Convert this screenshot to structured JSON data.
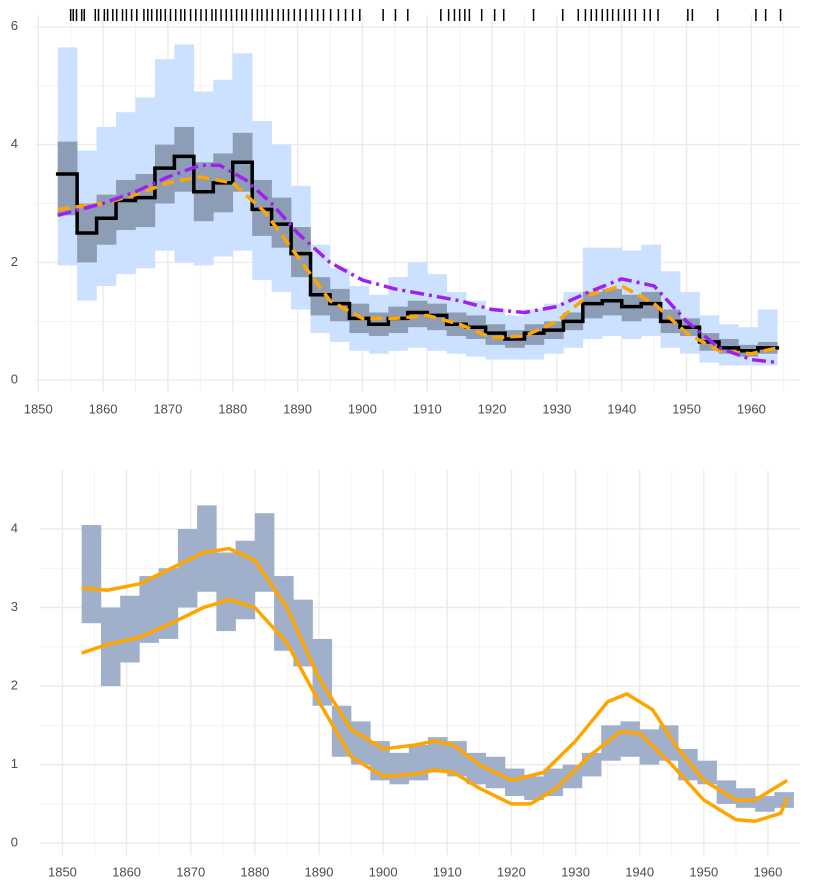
{
  "chart_data": [
    {
      "type": "line",
      "xlim": [
        1849.5,
        1967.5
      ],
      "ylim": [
        -0.2,
        6.2
      ],
      "xticks": [
        1850,
        1860,
        1870,
        1880,
        1890,
        1900,
        1910,
        1920,
        1930,
        1940,
        1950,
        1960
      ],
      "yticks": [
        0,
        2,
        4,
        6
      ],
      "grid": true,
      "bins": [
        1853,
        1856,
        1859,
        1862,
        1865,
        1868,
        1871,
        1874,
        1877,
        1880,
        1883,
        1886,
        1889,
        1892,
        1895,
        1898,
        1901,
        1904,
        1907,
        1910,
        1913,
        1916,
        1919,
        1922,
        1925,
        1928,
        1931,
        1934,
        1937,
        1940,
        1943,
        1946,
        1949,
        1952,
        1955,
        1958,
        1961,
        1964
      ],
      "bands": [
        {
          "color": "#cce0ff",
          "lower": [
            1.95,
            1.35,
            1.6,
            1.8,
            1.9,
            2.2,
            2.0,
            1.95,
            2.1,
            2.2,
            1.7,
            1.5,
            1.2,
            0.8,
            0.65,
            0.5,
            0.45,
            0.5,
            0.55,
            0.5,
            0.45,
            0.4,
            0.35,
            0.35,
            0.35,
            0.45,
            0.55,
            0.7,
            0.75,
            0.7,
            0.75,
            0.55,
            0.45,
            0.3,
            0.25,
            0.25,
            0.25
          ],
          "upper": [
            5.65,
            3.9,
            4.3,
            4.55,
            4.8,
            5.45,
            5.7,
            4.9,
            5.1,
            5.55,
            4.4,
            4.0,
            3.3,
            2.3,
            1.9,
            1.6,
            1.45,
            1.75,
            2.0,
            1.8,
            1.5,
            1.35,
            1.2,
            1.1,
            1.2,
            1.3,
            1.5,
            2.25,
            2.25,
            2.2,
            2.3,
            1.85,
            1.5,
            1.1,
            0.95,
            0.9,
            1.2
          ]
        },
        {
          "color": "#8e9db6",
          "lower": [
            2.8,
            2.0,
            2.3,
            2.55,
            2.6,
            3.0,
            3.2,
            2.7,
            2.85,
            3.2,
            2.45,
            2.25,
            1.75,
            1.1,
            1.0,
            0.8,
            0.75,
            0.8,
            0.9,
            0.85,
            0.75,
            0.7,
            0.6,
            0.55,
            0.6,
            0.7,
            0.85,
            1.05,
            1.1,
            1.0,
            1.05,
            0.8,
            0.75,
            0.5,
            0.45,
            0.4,
            0.45
          ],
          "upper": [
            4.05,
            3.0,
            3.15,
            3.4,
            3.5,
            4.0,
            4.3,
            3.7,
            3.85,
            4.2,
            3.4,
            3.1,
            2.6,
            1.75,
            1.55,
            1.3,
            1.15,
            1.25,
            1.35,
            1.3,
            1.15,
            1.1,
            0.95,
            0.85,
            0.95,
            1.0,
            1.15,
            1.5,
            1.55,
            1.45,
            1.5,
            1.2,
            1.05,
            0.8,
            0.7,
            0.6,
            0.65
          ]
        }
      ],
      "steps": [
        {
          "color": "#000000",
          "values": [
            3.5,
            2.5,
            2.75,
            3.05,
            3.1,
            3.6,
            3.8,
            3.2,
            3.35,
            3.7,
            2.9,
            2.65,
            2.15,
            1.45,
            1.3,
            1.05,
            0.95,
            1.05,
            1.15,
            1.1,
            0.95,
            0.9,
            0.8,
            0.7,
            0.8,
            0.85,
            1.0,
            1.3,
            1.35,
            1.25,
            1.3,
            1.0,
            0.9,
            0.65,
            0.55,
            0.5,
            0.55
          ]
        }
      ],
      "lines": [
        {
          "color": "#ffa500",
          "dash": "dashed",
          "x": [
            1853,
            1860,
            1865,
            1870,
            1875,
            1880,
            1885,
            1890,
            1895,
            1900,
            1905,
            1910,
            1915,
            1920,
            1925,
            1930,
            1935,
            1940,
            1945,
            1950,
            1955,
            1960,
            1964
          ],
          "values": [
            2.9,
            3.0,
            3.15,
            3.35,
            3.45,
            3.35,
            2.85,
            2.1,
            1.35,
            1.05,
            1.05,
            1.1,
            0.95,
            0.72,
            0.75,
            1.0,
            1.45,
            1.6,
            1.3,
            0.8,
            0.5,
            0.45,
            0.55
          ]
        },
        {
          "color": "#a020f0",
          "dash": "dashdot",
          "x": [
            1853,
            1860,
            1865,
            1870,
            1875,
            1878,
            1882,
            1886,
            1890,
            1895,
            1900,
            1905,
            1910,
            1915,
            1920,
            1925,
            1930,
            1935,
            1940,
            1945,
            1950,
            1955,
            1960,
            1964
          ],
          "values": [
            2.8,
            3.0,
            3.2,
            3.45,
            3.65,
            3.65,
            3.4,
            3.0,
            2.5,
            2.0,
            1.7,
            1.55,
            1.45,
            1.35,
            1.2,
            1.15,
            1.25,
            1.5,
            1.72,
            1.6,
            1.0,
            0.55,
            0.35,
            0.3
          ]
        }
      ],
      "rug": [
        1855,
        1855.4,
        1855.9,
        1856.7,
        1857.1,
        1858.8,
        1859.3,
        1860.2,
        1860.7,
        1861.5,
        1862.1,
        1863,
        1863.6,
        1864.4,
        1865.2,
        1866.3,
        1866.9,
        1867.5,
        1868.3,
        1868.9,
        1869.6,
        1870.4,
        1871.2,
        1872,
        1872.6,
        1873.5,
        1874.3,
        1875.1,
        1875.9,
        1876.8,
        1877.4,
        1878.2,
        1879,
        1879.8,
        1880.6,
        1881.4,
        1882.1,
        1883,
        1883.8,
        1884.5,
        1885.3,
        1886.1,
        1887,
        1887.8,
        1888.6,
        1889.5,
        1890.4,
        1891.3,
        1892.2,
        1893.1,
        1894,
        1895.1,
        1896.3,
        1897.4,
        1898.5,
        1899.6,
        1903.2,
        1905.1,
        1907,
        1912.1,
        1913.3,
        1914.2,
        1915,
        1915.8,
        1916.5,
        1918.4,
        1920.4,
        1921.8,
        1926.4,
        1930.9,
        1933.3,
        1934.4,
        1935.3,
        1936.1,
        1937,
        1937.8,
        1938.6,
        1939.5,
        1940.4,
        1941.2,
        1942.1,
        1943.5,
        1944.4,
        1945.6,
        1950.2,
        1950.9,
        1954.8,
        1960.7,
        1962.2,
        1964.5
      ]
    },
    {
      "type": "line",
      "xlim": [
        1846.5,
        1965
      ],
      "ylim": [
        -0.15,
        4.75
      ],
      "xticks": [
        1850,
        1860,
        1870,
        1880,
        1890,
        1900,
        1910,
        1920,
        1930,
        1940,
        1950,
        1960
      ],
      "yticks": [
        0,
        1,
        2,
        3,
        4
      ],
      "grid": true,
      "bins": [
        1853,
        1856,
        1859,
        1862,
        1865,
        1868,
        1871,
        1874,
        1877,
        1880,
        1883,
        1886,
        1889,
        1892,
        1895,
        1898,
        1901,
        1904,
        1907,
        1910,
        1913,
        1916,
        1919,
        1922,
        1925,
        1928,
        1931,
        1934,
        1937,
        1940,
        1943,
        1946,
        1949,
        1952,
        1955,
        1958,
        1961,
        1964
      ],
      "bands": [
        {
          "color": "#a0b0cb",
          "lower": [
            2.8,
            2.0,
            2.3,
            2.55,
            2.6,
            3.0,
            3.2,
            2.7,
            2.85,
            3.2,
            2.45,
            2.25,
            1.75,
            1.1,
            1.0,
            0.8,
            0.75,
            0.8,
            0.9,
            0.85,
            0.75,
            0.7,
            0.6,
            0.55,
            0.6,
            0.7,
            0.85,
            1.05,
            1.1,
            1.0,
            1.05,
            0.8,
            0.75,
            0.5,
            0.45,
            0.4,
            0.45
          ],
          "upper": [
            4.05,
            3.0,
            3.15,
            3.4,
            3.5,
            4.0,
            4.3,
            3.7,
            3.85,
            4.2,
            3.4,
            3.1,
            2.6,
            1.75,
            1.55,
            1.3,
            1.15,
            1.25,
            1.35,
            1.3,
            1.15,
            1.1,
            0.95,
            0.85,
            0.95,
            1.0,
            1.15,
            1.5,
            1.55,
            1.45,
            1.5,
            1.2,
            1.05,
            0.8,
            0.7,
            0.6,
            0.65
          ]
        }
      ],
      "lines": [
        {
          "color": "#ffa500",
          "dash": "solid",
          "x": [
            1853,
            1857,
            1862,
            1867,
            1872,
            1876,
            1880,
            1885,
            1890,
            1895,
            1900,
            1905,
            1908,
            1911,
            1915,
            1920,
            1925,
            1930,
            1935,
            1938,
            1942,
            1946,
            1950,
            1955,
            1958,
            1963
          ],
          "values": [
            3.25,
            3.22,
            3.3,
            3.5,
            3.7,
            3.75,
            3.6,
            3.0,
            2.1,
            1.45,
            1.2,
            1.25,
            1.3,
            1.25,
            1.0,
            0.8,
            0.9,
            1.3,
            1.8,
            1.9,
            1.7,
            1.2,
            0.8,
            0.55,
            0.55,
            0.8
          ]
        },
        {
          "color": "#ffa500",
          "dash": "solid",
          "x": [
            1853,
            1857,
            1862,
            1867,
            1872,
            1876,
            1880,
            1885,
            1890,
            1895,
            1900,
            1905,
            1908,
            1911,
            1915,
            1920,
            1923,
            1927,
            1932,
            1937,
            1940,
            1945,
            1950,
            1955,
            1958,
            1962,
            1963
          ],
          "values": [
            2.42,
            2.53,
            2.62,
            2.8,
            3.0,
            3.1,
            3.0,
            2.55,
            1.8,
            1.1,
            0.85,
            0.88,
            0.93,
            0.9,
            0.7,
            0.5,
            0.5,
            0.7,
            1.1,
            1.42,
            1.4,
            1.0,
            0.55,
            0.3,
            0.28,
            0.38,
            0.58
          ]
        }
      ]
    }
  ]
}
